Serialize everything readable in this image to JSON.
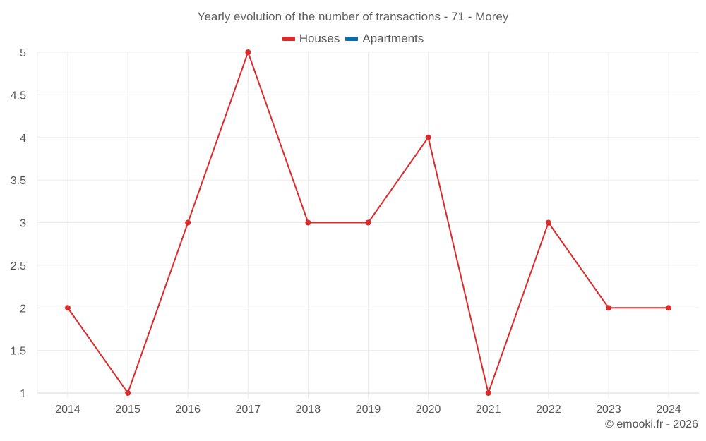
{
  "header": {
    "title": "Yearly evolution of the number of transactions - 71 - Morey"
  },
  "legend": {
    "items": [
      {
        "label": "Houses",
        "color": "#dc2a2a"
      },
      {
        "label": "Apartments",
        "color": "#0e6aa6"
      }
    ]
  },
  "footer": {
    "credit": "© emooki.fr - 2026"
  },
  "chart_data": {
    "type": "line",
    "title": "Yearly evolution of the number of transactions - 71 - Morey",
    "xlabel": "",
    "ylabel": "",
    "categories": [
      "2014",
      "2015",
      "2016",
      "2017",
      "2018",
      "2019",
      "2020",
      "2021",
      "2022",
      "2023",
      "2024"
    ],
    "series": [
      {
        "name": "Houses",
        "color": "#dc2a2a",
        "values": [
          2,
          1,
          3,
          5,
          3,
          3,
          4,
          1,
          3,
          2,
          2
        ]
      },
      {
        "name": "Apartments",
        "color": "#0e6aa6",
        "values": []
      }
    ],
    "ylim": [
      1,
      5
    ],
    "yticks": [
      "1",
      "1.5",
      "2",
      "2.5",
      "3",
      "3.5",
      "4",
      "4.5",
      "5"
    ],
    "grid": true,
    "legend_position": "top"
  }
}
